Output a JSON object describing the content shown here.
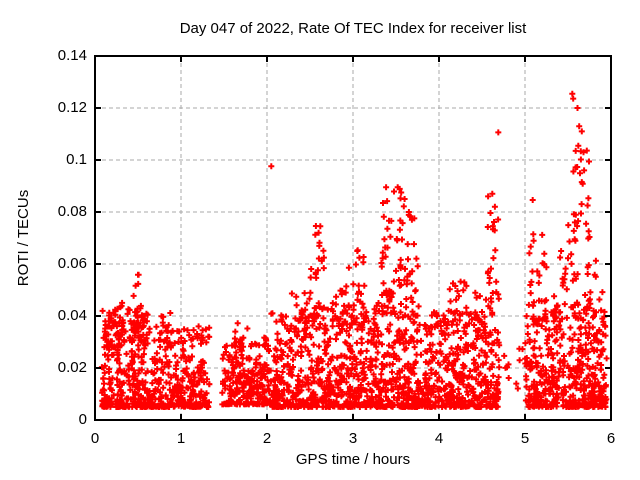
{
  "chart_data": {
    "type": "scatter",
    "title": "Day 047 of 2022, Rate Of TEC Index for receiver list",
    "xlabel": "GPS time / hours",
    "ylabel": "ROTI / TECUs",
    "xlim": [
      0,
      6
    ],
    "ylim": [
      0,
      0.14
    ],
    "grid": true,
    "legend": "none",
    "x_ticks": [
      0,
      1,
      2,
      3,
      4,
      5,
      6
    ],
    "x_tick_labels": [
      "0",
      "1",
      "2",
      "3",
      "4",
      "5",
      "6"
    ],
    "y_ticks": [
      0,
      0.02,
      0.04,
      0.06,
      0.08,
      0.1,
      0.12,
      0.14
    ],
    "y_tick_labels": [
      "0",
      "0.02",
      "0.04",
      "0.06",
      "0.08",
      "0.1",
      "0.12",
      "0.14"
    ],
    "marker": {
      "shape": "plus",
      "color": "#ff0000",
      "size": 7,
      "stroke_width": 2
    },
    "seed": 20220047,
    "band_clusters": [
      {
        "x0": 0.08,
        "x1": 0.62,
        "n": 280,
        "y0": 0.005,
        "y1": 0.044,
        "k": 2.2
      },
      {
        "x0": 0.62,
        "x1": 1.33,
        "n": 300,
        "y0": 0.005,
        "y1": 0.036,
        "k": 2.2
      },
      {
        "x0": 1.48,
        "x1": 2.05,
        "n": 260,
        "y0": 0.006,
        "y1": 0.032,
        "k": 2.2
      },
      {
        "x0": 2.05,
        "x1": 2.55,
        "n": 240,
        "y0": 0.005,
        "y1": 0.042,
        "k": 2.2
      },
      {
        "x0": 2.55,
        "x1": 3.3,
        "n": 360,
        "y0": 0.005,
        "y1": 0.045,
        "k": 2.2
      },
      {
        "x0": 3.3,
        "x1": 3.8,
        "n": 260,
        "y0": 0.005,
        "y1": 0.05,
        "k": 2.2
      },
      {
        "x0": 3.8,
        "x1": 4.7,
        "n": 420,
        "y0": 0.005,
        "y1": 0.042,
        "k": 2.2
      },
      {
        "x0": 4.73,
        "x1": 5.0,
        "n": 10,
        "y0": 0.012,
        "y1": 0.03,
        "k": 1.5
      },
      {
        "x0": 5.0,
        "x1": 5.3,
        "n": 150,
        "y0": 0.005,
        "y1": 0.04,
        "k": 2.0
      },
      {
        "x0": 5.3,
        "x1": 5.95,
        "n": 330,
        "y0": 0.005,
        "y1": 0.045,
        "k": 2.0
      }
    ],
    "spike_clusters": [
      {
        "x0": 0.1,
        "x1": 0.32,
        "n": 35,
        "y0": 0.028,
        "y1": 0.046,
        "k": 1.5
      },
      {
        "x0": 0.42,
        "x1": 0.56,
        "n": 28,
        "y0": 0.03,
        "y1": 0.056,
        "k": 1.3
      },
      {
        "x0": 0.72,
        "x1": 0.92,
        "n": 14,
        "y0": 0.028,
        "y1": 0.043,
        "k": 1.4
      },
      {
        "x0": 1.6,
        "x1": 1.8,
        "n": 8,
        "y0": 0.028,
        "y1": 0.038,
        "k": 1.4
      },
      {
        "x0": 2.28,
        "x1": 2.5,
        "n": 16,
        "y0": 0.032,
        "y1": 0.05,
        "k": 1.4
      },
      {
        "x0": 2.5,
        "x1": 2.68,
        "n": 26,
        "y0": 0.038,
        "y1": 0.075,
        "k": 1.3
      },
      {
        "x0": 2.8,
        "x1": 3.0,
        "n": 14,
        "y0": 0.035,
        "y1": 0.062,
        "k": 1.4
      },
      {
        "x0": 3.0,
        "x1": 3.17,
        "n": 22,
        "y0": 0.035,
        "y1": 0.066,
        "k": 1.4
      },
      {
        "x0": 3.33,
        "x1": 3.57,
        "n": 38,
        "y0": 0.04,
        "y1": 0.091,
        "k": 1.25
      },
      {
        "x0": 3.55,
        "x1": 3.76,
        "n": 32,
        "y0": 0.04,
        "y1": 0.083,
        "k": 1.3
      },
      {
        "x0": 4.02,
        "x1": 4.32,
        "n": 24,
        "y0": 0.033,
        "y1": 0.056,
        "k": 1.4
      },
      {
        "x0": 4.42,
        "x1": 4.56,
        "n": 12,
        "y0": 0.033,
        "y1": 0.05,
        "k": 1.4
      },
      {
        "x0": 4.55,
        "x1": 4.7,
        "n": 26,
        "y0": 0.04,
        "y1": 0.088,
        "k": 1.3
      },
      {
        "x0": 5.04,
        "x1": 5.26,
        "n": 26,
        "y0": 0.038,
        "y1": 0.072,
        "k": 1.35
      },
      {
        "x0": 5.33,
        "x1": 5.5,
        "n": 14,
        "y0": 0.034,
        "y1": 0.067,
        "k": 1.4
      },
      {
        "x0": 5.5,
        "x1": 5.76,
        "n": 40,
        "y0": 0.04,
        "y1": 0.105,
        "k": 1.3
      },
      {
        "x0": 5.74,
        "x1": 5.92,
        "n": 14,
        "y0": 0.033,
        "y1": 0.062,
        "k": 1.4
      }
    ],
    "outlier_points": [
      [
        0.5,
        0.0559
      ],
      [
        2.05,
        0.0976
      ],
      [
        2.62,
        0.0745
      ],
      [
        2.6,
        0.072
      ],
      [
        3.05,
        0.065
      ],
      [
        3.52,
        0.0895
      ],
      [
        3.56,
        0.0875
      ],
      [
        3.6,
        0.085
      ],
      [
        3.65,
        0.08
      ],
      [
        4.62,
        0.087
      ],
      [
        4.65,
        0.082
      ],
      [
        4.69,
        0.1106
      ],
      [
        5.09,
        0.0846
      ],
      [
        5.2,
        0.0712
      ],
      [
        5.42,
        0.065
      ],
      [
        5.55,
        0.1255
      ],
      [
        5.56,
        0.1236
      ],
      [
        5.61,
        0.12
      ],
      [
        5.63,
        0.113
      ],
      [
        5.66,
        0.111
      ],
      [
        5.59,
        0.1035
      ],
      [
        5.62,
        0.1055
      ],
      [
        5.68,
        0.103
      ],
      [
        5.64,
        0.0949
      ],
      [
        5.66,
        0.0915
      ],
      [
        5.58,
        0.076
      ],
      [
        5.71,
        0.0755
      ],
      [
        5.75,
        0.0704
      ]
    ]
  },
  "colors": {
    "marker": "#ff0000",
    "grid": "#a8a8a8",
    "axis": "#000000",
    "text": "#000000",
    "background": "#ffffff"
  }
}
